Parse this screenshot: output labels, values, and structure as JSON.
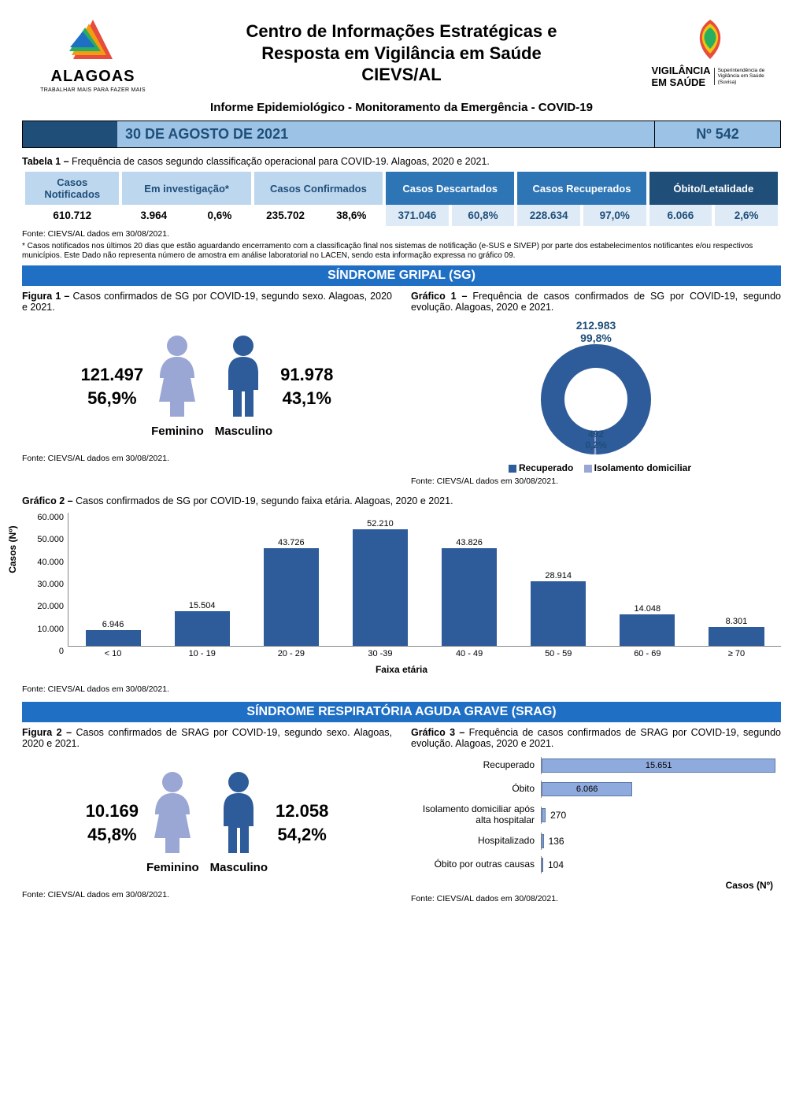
{
  "header": {
    "title_line1": "Centro de Informações Estratégicas e",
    "title_line2": "Resposta em Vigilância em Saúde",
    "title_line3": "CIEVS/AL",
    "logo_left_text": "ALAGOAS",
    "logo_left_sub": "TRABALHAR MAIS PARA FAZER MAIS",
    "logo_right_line1": "VIGILÂNCIA",
    "logo_right_line2": "EM SAÚDE",
    "logo_right_side": "Superintendência de Vigilância em Saúde (Suvisa)"
  },
  "subtitle": "Informe Epidemiológico - Monitoramento da Emergência - COVID-19",
  "date_bar": {
    "date": "30 DE AGOSTO DE 2021",
    "num": "Nº 542"
  },
  "tabela1": {
    "caption_bold": "Tabela 1 –",
    "caption_text": " Frequência de casos segundo classificação operacional para COVID-19. Alagoas, 2020 e 2021.",
    "headers": [
      "Casos Notificados",
      "Em investigação*",
      "Casos Confirmados",
      "Casos Descartados",
      "Casos Recuperados",
      "Óbito/Letalidade"
    ],
    "row": [
      "610.712",
      "3.964",
      "0,6%",
      "235.702",
      "38,6%",
      "371.046",
      "60,8%",
      "228.634",
      "97,0%",
      "6.066",
      "2,6%"
    ]
  },
  "fonte": "Fonte: CIEVS/AL dados em 30/08/2021.",
  "footnote": "* Casos notificados nos últimos 20 dias que estão aguardando encerramento com a classificação final nos sistemas de notificação (e-SUS e SIVEP) por parte dos estabelecimentos notificantes e/ou respectivos municípios. Este Dado não representa número de amostra em análise laboratorial no LACEN, sendo esta informação expressa no gráfico 09.",
  "section_sg": "SÍNDROME GRIPAL (SG)",
  "figura1": {
    "caption_bold": "Figura 1 –",
    "caption_text": " Casos confirmados de SG por COVID-19, segundo sexo. Alagoas, 2020 e 2021.",
    "fem_count": "121.497",
    "fem_pct": "56,9%",
    "fem_label": "Feminino",
    "masc_count": "91.978",
    "masc_pct": "43,1%",
    "masc_label": "Masculino",
    "fem_color": "#9aa6d4",
    "masc_color": "#2e5b99"
  },
  "grafico1": {
    "caption_bold": "Gráfico 1 –",
    "caption_text": " Frequência de casos confirmados de SG por COVID-19, segundo evolução. Alagoas, 2020 e 2021.",
    "type": "donut",
    "slices": [
      {
        "label": "Recuperado",
        "value": "212.983",
        "pct": 99.8,
        "pct_label": "99,8%",
        "color": "#2e5b99"
      },
      {
        "label": "Isolamento domiciliar",
        "value": "492",
        "pct": 0.2,
        "pct_label": "0,2%",
        "color": "#9aa6d4"
      }
    ],
    "legend": [
      "Recuperado",
      "Isolamento domiciliar"
    ]
  },
  "grafico2": {
    "caption_bold": "Gráfico 2 –",
    "caption_text": " Casos confirmados de SG por COVID-19, segundo faixa etária. Alagoas, 2020 e 2021.",
    "ylabel": "Casos (Nº)",
    "xlabel": "Faixa etária",
    "ylim": 60000,
    "yticks_labels": [
      "0",
      "10.000",
      "20.000",
      "30.000",
      "40.000",
      "50.000",
      "60.000"
    ],
    "categories": [
      "< 10",
      "10 - 19",
      "20 - 29",
      "30 -39",
      "40 - 49",
      "50 - 59",
      "60 - 69",
      "≥ 70"
    ],
    "values": [
      6946,
      15504,
      43726,
      52210,
      43826,
      28914,
      14048,
      8301
    ],
    "value_labels": [
      "6.946",
      "15.504",
      "43.726",
      "52.210",
      "43.826",
      "28.914",
      "14.048",
      "8.301"
    ],
    "bar_color": "#2e5b99"
  },
  "section_srag": "SÍNDROME RESPIRATÓRIA AGUDA GRAVE (SRAG)",
  "figura2": {
    "caption_bold": "Figura 2 –",
    "caption_text": " Casos confirmados de SRAG por COVID-19, segundo sexo. Alagoas, 2020 e 2021.",
    "fem_count": "10.169",
    "fem_pct": "45,8%",
    "fem_label": "Feminino",
    "masc_count": "12.058",
    "masc_pct": "54,2%",
    "masc_label": "Masculino",
    "fem_color": "#9aa6d4",
    "masc_color": "#2e5b99"
  },
  "grafico3": {
    "caption_bold": "Gráfico 3 –",
    "caption_text": " Frequência de casos confirmados de SRAG por COVID-19, segundo evolução. Alagoas, 2020 e 2021.",
    "xlabel": "Casos (Nº)",
    "max": 16000,
    "rows": [
      {
        "label": "Recuperado",
        "value": 15651,
        "value_label": "15.651",
        "color": "#8faadc"
      },
      {
        "label": "Óbito",
        "value": 6066,
        "value_label": "6.066",
        "color": "#8faadc"
      },
      {
        "label": "Isolamento domiciliar após alta hospitalar",
        "value": 270,
        "value_label": "270",
        "color": "#8faadc"
      },
      {
        "label": "Hospitalizado",
        "value": 136,
        "value_label": "136",
        "color": "#8faadc"
      },
      {
        "label": "Óbito por outras causas",
        "value": 104,
        "value_label": "104",
        "color": "#8faadc"
      }
    ]
  }
}
